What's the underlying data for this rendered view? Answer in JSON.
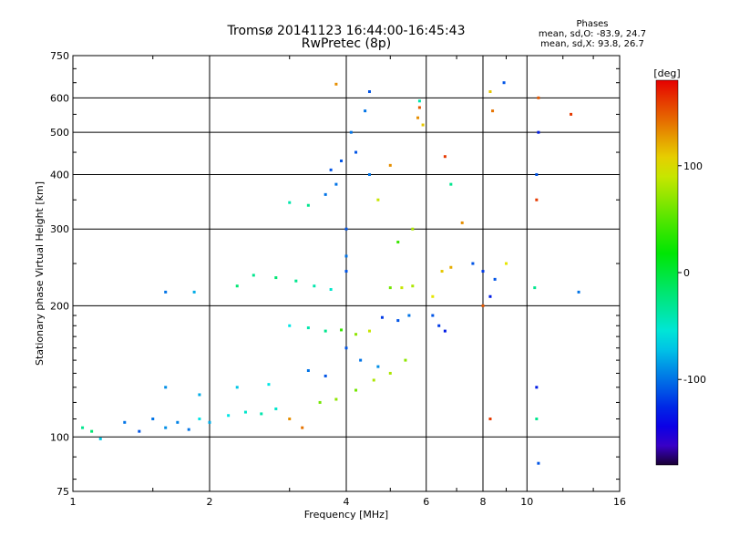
{
  "title": "Tromsø 20141123 16:44:00-16:45:43",
  "subtitle": "RwPretec (8p)",
  "stats": {
    "heading": "Phases",
    "line1": "mean, sd,O: -83.9, 24.7",
    "line2": "mean, sd,X:  93.8, 26.7"
  },
  "chart_data": {
    "type": "scatter",
    "xlabel": "Frequency [MHz]",
    "ylabel": "Stationary phase Virtual Height [km]",
    "xscale": "log",
    "yscale": "log",
    "xlim": [
      1,
      16
    ],
    "ylim": [
      75,
      750
    ],
    "xticks": [
      1,
      2,
      4,
      6,
      8,
      10,
      16
    ],
    "yticks": [
      75,
      100,
      200,
      300,
      400,
      500,
      600,
      750
    ],
    "grid": true,
    "colorbar": {
      "label": "[deg]",
      "ticks": [
        100,
        0,
        -100
      ],
      "range": [
        -180,
        180
      ],
      "colormap": "rainbow"
    },
    "series": [
      {
        "x": 1.05,
        "y": 105,
        "phase": -30
      },
      {
        "x": 1.1,
        "y": 103,
        "phase": -20
      },
      {
        "x": 1.15,
        "y": 99,
        "phase": -70
      },
      {
        "x": 1.3,
        "y": 108,
        "phase": -100
      },
      {
        "x": 1.4,
        "y": 103,
        "phase": -110
      },
      {
        "x": 1.5,
        "y": 110,
        "phase": -100
      },
      {
        "x": 1.6,
        "y": 105,
        "phase": -90
      },
      {
        "x": 1.7,
        "y": 108,
        "phase": -95
      },
      {
        "x": 1.8,
        "y": 104,
        "phase": -100
      },
      {
        "x": 1.9,
        "y": 110,
        "phase": -60
      },
      {
        "x": 2.0,
        "y": 108,
        "phase": -80
      },
      {
        "x": 2.2,
        "y": 112,
        "phase": -60
      },
      {
        "x": 2.4,
        "y": 114,
        "phase": -50
      },
      {
        "x": 2.6,
        "y": 113,
        "phase": -40
      },
      {
        "x": 2.8,
        "y": 116,
        "phase": -50
      },
      {
        "x": 3.0,
        "y": 110,
        "phase": 130
      },
      {
        "x": 3.2,
        "y": 105,
        "phase": 140
      },
      {
        "x": 1.6,
        "y": 130,
        "phase": -90
      },
      {
        "x": 1.9,
        "y": 125,
        "phase": -80
      },
      {
        "x": 2.3,
        "y": 130,
        "phase": -70
      },
      {
        "x": 2.7,
        "y": 132,
        "phase": -60
      },
      {
        "x": 2.5,
        "y": 235,
        "phase": -30
      },
      {
        "x": 2.8,
        "y": 232,
        "phase": -20
      },
      {
        "x": 3.1,
        "y": 228,
        "phase": -30
      },
      {
        "x": 3.4,
        "y": 222,
        "phase": -40
      },
      {
        "x": 3.7,
        "y": 218,
        "phase": -50
      },
      {
        "x": 1.6,
        "y": 215,
        "phase": -100
      },
      {
        "x": 1.85,
        "y": 215,
        "phase": -80
      },
      {
        "x": 2.3,
        "y": 222,
        "phase": -20
      },
      {
        "x": 3.0,
        "y": 180,
        "phase": -60
      },
      {
        "x": 3.3,
        "y": 178,
        "phase": -40
      },
      {
        "x": 3.6,
        "y": 175,
        "phase": -30
      },
      {
        "x": 3.9,
        "y": 176,
        "phase": 40
      },
      {
        "x": 4.2,
        "y": 172,
        "phase": 70
      },
      {
        "x": 4.5,
        "y": 175,
        "phase": 90
      },
      {
        "x": 3.0,
        "y": 345,
        "phase": -40
      },
      {
        "x": 3.3,
        "y": 340,
        "phase": -30
      },
      {
        "x": 3.6,
        "y": 360,
        "phase": -100
      },
      {
        "x": 3.7,
        "y": 410,
        "phase": -110
      },
      {
        "x": 3.8,
        "y": 380,
        "phase": -100
      },
      {
        "x": 3.9,
        "y": 430,
        "phase": -110
      },
      {
        "x": 4.0,
        "y": 300,
        "phase": -110
      },
      {
        "x": 4.0,
        "y": 260,
        "phase": -100
      },
      {
        "x": 4.0,
        "y": 240,
        "phase": -110
      },
      {
        "x": 4.1,
        "y": 500,
        "phase": -100
      },
      {
        "x": 4.2,
        "y": 450,
        "phase": -110
      },
      {
        "x": 4.4,
        "y": 560,
        "phase": -100
      },
      {
        "x": 4.5,
        "y": 620,
        "phase": -110
      },
      {
        "x": 4.5,
        "y": 400,
        "phase": -100
      },
      {
        "x": 3.8,
        "y": 645,
        "phase": 130
      },
      {
        "x": 4.0,
        "y": 160,
        "phase": -110
      },
      {
        "x": 4.3,
        "y": 150,
        "phase": -100
      },
      {
        "x": 4.7,
        "y": 145,
        "phase": -90
      },
      {
        "x": 5.0,
        "y": 140,
        "phase": 80
      },
      {
        "x": 5.4,
        "y": 150,
        "phase": 70
      },
      {
        "x": 3.6,
        "y": 138,
        "phase": -110
      },
      {
        "x": 3.3,
        "y": 142,
        "phase": -100
      },
      {
        "x": 3.5,
        "y": 120,
        "phase": 60
      },
      {
        "x": 3.8,
        "y": 122,
        "phase": 70
      },
      {
        "x": 4.2,
        "y": 128,
        "phase": 60
      },
      {
        "x": 4.6,
        "y": 135,
        "phase": 80
      },
      {
        "x": 5.0,
        "y": 220,
        "phase": 60
      },
      {
        "x": 5.3,
        "y": 220,
        "phase": 90
      },
      {
        "x": 5.6,
        "y": 222,
        "phase": 80
      },
      {
        "x": 4.8,
        "y": 188,
        "phase": -120
      },
      {
        "x": 5.2,
        "y": 185,
        "phase": -110
      },
      {
        "x": 5.5,
        "y": 190,
        "phase": -100
      },
      {
        "x": 5.8,
        "y": 570,
        "phase": 150
      },
      {
        "x": 5.75,
        "y": 540,
        "phase": 130
      },
      {
        "x": 5.9,
        "y": 520,
        "phase": 110
      },
      {
        "x": 5.8,
        "y": 590,
        "phase": -40
      },
      {
        "x": 6.2,
        "y": 210,
        "phase": 100
      },
      {
        "x": 6.5,
        "y": 240,
        "phase": 110
      },
      {
        "x": 6.8,
        "y": 245,
        "phase": 120
      },
      {
        "x": 6.6,
        "y": 175,
        "phase": -130
      },
      {
        "x": 6.4,
        "y": 180,
        "phase": -120
      },
      {
        "x": 6.2,
        "y": 190,
        "phase": -110
      },
      {
        "x": 5.2,
        "y": 280,
        "phase": 40
      },
      {
        "x": 5.6,
        "y": 300,
        "phase": 80
      },
      {
        "x": 6.6,
        "y": 440,
        "phase": 160
      },
      {
        "x": 7.6,
        "y": 250,
        "phase": -110
      },
      {
        "x": 8.0,
        "y": 240,
        "phase": -120
      },
      {
        "x": 8.5,
        "y": 230,
        "phase": -110
      },
      {
        "x": 8.3,
        "y": 210,
        "phase": -130
      },
      {
        "x": 8.0,
        "y": 200,
        "phase": 150
      },
      {
        "x": 9.0,
        "y": 250,
        "phase": 100
      },
      {
        "x": 8.9,
        "y": 650,
        "phase": -110
      },
      {
        "x": 8.3,
        "y": 620,
        "phase": 110
      },
      {
        "x": 10.5,
        "y": 350,
        "phase": 160
      },
      {
        "x": 10.5,
        "y": 400,
        "phase": -110
      },
      {
        "x": 10.6,
        "y": 500,
        "phase": -130
      },
      {
        "x": 10.4,
        "y": 220,
        "phase": -30
      },
      {
        "x": 10.5,
        "y": 110,
        "phase": -30
      },
      {
        "x": 10.6,
        "y": 87,
        "phase": -110
      },
      {
        "x": 10.5,
        "y": 130,
        "phase": -130
      },
      {
        "x": 8.3,
        "y": 110,
        "phase": 160
      },
      {
        "x": 8.4,
        "y": 560,
        "phase": 140
      },
      {
        "x": 10.6,
        "y": 600,
        "phase": 150
      },
      {
        "x": 12.5,
        "y": 550,
        "phase": 160
      },
      {
        "x": 13.0,
        "y": 215,
        "phase": -100
      },
      {
        "x": 7.2,
        "y": 310,
        "phase": 130
      },
      {
        "x": 6.8,
        "y": 380,
        "phase": -30
      },
      {
        "x": 5.0,
        "y": 420,
        "phase": 130
      },
      {
        "x": 4.7,
        "y": 350,
        "phase": 90
      }
    ]
  }
}
